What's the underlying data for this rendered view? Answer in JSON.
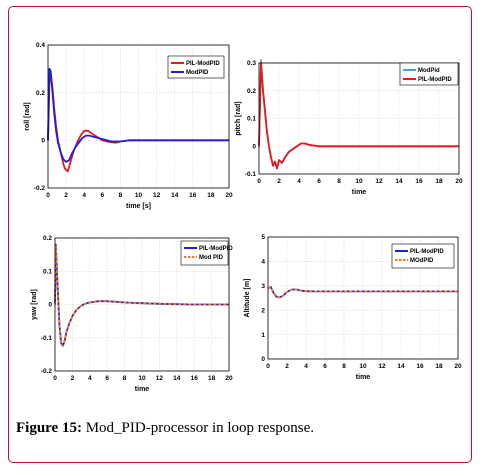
{
  "caption": {
    "label": "Figure 15:",
    "text": "Mod_PID-processor in loop response."
  },
  "chart_data": [
    {
      "type": "line",
      "ylabel": "roll [rad]",
      "xlabel": "time [s]",
      "xlim": [
        0,
        20
      ],
      "ylim": [
        -0.2,
        0.4
      ],
      "xticks": [
        0,
        2,
        4,
        6,
        8,
        10,
        12,
        14,
        16,
        18,
        20
      ],
      "yticks": [
        -0.2,
        0,
        0.2,
        0.4
      ],
      "grid": true,
      "legend": "top-right",
      "series": [
        {
          "name": "PIL-ModPID",
          "color": "#e41a1c",
          "style": "solid",
          "x": [
            0,
            0.15,
            0.3,
            0.5,
            0.7,
            0.9,
            1.1,
            1.4,
            1.7,
            1.9,
            2.2,
            2.5,
            2.8,
            3.2,
            3.6,
            4.0,
            4.4,
            4.8,
            5.2,
            5.6,
            6.0,
            6.5,
            7.0,
            7.5,
            8.0,
            9.0,
            10.0,
            12.0,
            14.0,
            16.0,
            18.0,
            20.0
          ],
          "y": [
            0.0,
            0.24,
            0.28,
            0.22,
            0.13,
            0.06,
            0.0,
            -0.05,
            -0.1,
            -0.12,
            -0.13,
            -0.09,
            -0.05,
            -0.01,
            0.02,
            0.04,
            0.04,
            0.03,
            0.02,
            0.01,
            0.0,
            -0.005,
            -0.008,
            -0.01,
            -0.005,
            0.0,
            0.0,
            0.0,
            0.0,
            0.0,
            0.0,
            0.0
          ]
        },
        {
          "name": "ModPID",
          "color": "#1f1fd6",
          "style": "solid",
          "x": [
            0,
            0.15,
            0.3,
            0.5,
            0.7,
            0.9,
            1.1,
            1.4,
            1.7,
            2.0,
            2.3,
            2.6,
            3.0,
            3.4,
            3.8,
            4.2,
            4.6,
            5.0,
            5.5,
            6.0,
            6.5,
            7.0,
            8.0,
            9.0,
            10.0,
            12.0,
            14.0,
            16.0,
            18.0,
            20.0
          ],
          "y": [
            0.0,
            0.3,
            0.29,
            0.2,
            0.11,
            0.04,
            -0.01,
            -0.05,
            -0.08,
            -0.09,
            -0.085,
            -0.06,
            -0.03,
            -0.01,
            0.01,
            0.02,
            0.02,
            0.015,
            0.01,
            0.005,
            0.0,
            -0.005,
            -0.005,
            0.0,
            0.0,
            0.0,
            0.0,
            0.0,
            0.0,
            0.0
          ]
        }
      ]
    },
    {
      "type": "line",
      "ylabel": "pitch [rad]",
      "xlabel": "time",
      "xlim": [
        0,
        20
      ],
      "ylim": [
        -0.1,
        0.3
      ],
      "xticks": [
        0,
        2,
        4,
        6,
        8,
        10,
        12,
        14,
        16,
        18,
        20
      ],
      "yticks": [
        -0.1,
        0,
        0.1,
        0.2,
        0.3
      ],
      "grid": true,
      "legend": "top-right",
      "series": [
        {
          "name": "ModPid",
          "color": "#4aa3c8",
          "style": "solid",
          "x": [
            0,
            0.2,
            0.4,
            0.6,
            0.8,
            1.0,
            1.2,
            1.4,
            1.6,
            1.8,
            2.0,
            2.3,
            2.6,
            3.0,
            3.4,
            3.8,
            4.2,
            4.6,
            5.0,
            6.0,
            8.0,
            10.0,
            14.0,
            20.0
          ],
          "y": [
            0.0,
            0.31,
            0.2,
            0.12,
            0.05,
            0.0,
            -0.04,
            -0.07,
            -0.06,
            -0.08,
            -0.05,
            -0.06,
            -0.04,
            -0.02,
            -0.01,
            0.0,
            0.01,
            0.01,
            0.005,
            0.0,
            0.0,
            0.0,
            0.0,
            0.0
          ]
        },
        {
          "name": "PIL-ModPID",
          "color": "#e41a1c",
          "style": "solid",
          "x": [
            0,
            0.2,
            0.4,
            0.6,
            0.8,
            1.0,
            1.2,
            1.4,
            1.6,
            1.8,
            2.0,
            2.3,
            2.6,
            3.0,
            3.4,
            3.8,
            4.2,
            4.6,
            5.0,
            6.0,
            8.0,
            10.0,
            14.0,
            20.0
          ],
          "y": [
            0.0,
            0.3,
            0.2,
            0.13,
            0.05,
            0.0,
            -0.04,
            -0.07,
            -0.055,
            -0.08,
            -0.05,
            -0.06,
            -0.04,
            -0.02,
            -0.01,
            0.0,
            0.01,
            0.01,
            0.005,
            0.0,
            0.0,
            0.0,
            0.0,
            0.0
          ]
        }
      ]
    },
    {
      "type": "line",
      "ylabel": "yaw [rad]",
      "xlabel": "time",
      "xlim": [
        0,
        20
      ],
      "ylim": [
        -0.2,
        0.2
      ],
      "xticks": [
        0,
        2,
        4,
        6,
        8,
        10,
        12,
        14,
        16,
        18,
        20
      ],
      "yticks": [
        -0.2,
        -0.1,
        0,
        0.1,
        0.2
      ],
      "grid": true,
      "legend": "top-right",
      "series": [
        {
          "name": "PIL-ModPID",
          "color": "#1f1fd6",
          "style": "solid",
          "x": [
            0,
            0.1,
            0.2,
            0.35,
            0.5,
            0.7,
            0.9,
            1.1,
            1.3,
            1.6,
            2.0,
            2.5,
            3.0,
            3.5,
            4.0,
            5.0,
            6.0,
            7.0,
            8.0,
            10.0,
            12.0,
            14.0,
            16.0,
            18.0,
            20.0
          ],
          "y": [
            0.0,
            0.18,
            0.12,
            0.03,
            -0.06,
            -0.115,
            -0.125,
            -0.11,
            -0.085,
            -0.06,
            -0.035,
            -0.015,
            -0.004,
            0.003,
            0.006,
            0.01,
            0.01,
            0.008,
            0.006,
            0.004,
            0.002,
            0.001,
            0.0,
            0.0,
            0.0
          ]
        },
        {
          "name": "Mod PID",
          "color": "#f07a2a",
          "style": "dashed",
          "x": [
            0,
            0.1,
            0.2,
            0.35,
            0.5,
            0.7,
            0.9,
            1.1,
            1.3,
            1.6,
            2.0,
            2.5,
            3.0,
            3.5,
            4.0,
            5.0,
            6.0,
            7.0,
            8.0,
            10.0,
            12.0,
            14.0,
            16.0,
            18.0,
            20.0
          ],
          "y": [
            0.0,
            0.18,
            0.12,
            0.03,
            -0.06,
            -0.115,
            -0.125,
            -0.11,
            -0.085,
            -0.06,
            -0.035,
            -0.015,
            -0.004,
            0.003,
            0.006,
            0.01,
            0.01,
            0.008,
            0.006,
            0.004,
            0.002,
            0.001,
            0.0,
            0.0,
            0.0
          ]
        }
      ]
    },
    {
      "type": "line",
      "ylabel": "Altitude [m]",
      "xlabel": "time",
      "xlim": [
        0,
        20
      ],
      "ylim": [
        0,
        5
      ],
      "xticks": [
        0,
        2,
        4,
        6,
        8,
        10,
        12,
        14,
        16,
        18,
        20
      ],
      "yticks": [
        0,
        1,
        2,
        3,
        4,
        5
      ],
      "grid": true,
      "legend": "top-right",
      "series": [
        {
          "name": "PIL-ModPID",
          "color": "#1f1fd6",
          "style": "solid",
          "x": [
            0,
            0.3,
            0.6,
            0.9,
            1.2,
            1.6,
            2.0,
            2.5,
            3.0,
            3.5,
            4.0,
            5.0,
            6.0,
            8.0,
            10.0,
            12.0,
            14.0,
            16.0,
            18.0,
            20.0
          ],
          "y": [
            2.9,
            2.95,
            2.7,
            2.55,
            2.52,
            2.6,
            2.75,
            2.85,
            2.85,
            2.8,
            2.78,
            2.77,
            2.77,
            2.77,
            2.77,
            2.77,
            2.77,
            2.77,
            2.77,
            2.77
          ]
        },
        {
          "name": "MOdPID",
          "color": "#f07a2a",
          "style": "dashed",
          "x": [
            0,
            0.3,
            0.6,
            0.9,
            1.2,
            1.6,
            2.0,
            2.5,
            3.0,
            3.5,
            4.0,
            5.0,
            6.0,
            8.0,
            10.0,
            12.0,
            14.0,
            16.0,
            18.0,
            20.0
          ],
          "y": [
            2.9,
            2.95,
            2.7,
            2.55,
            2.52,
            2.6,
            2.75,
            2.85,
            2.85,
            2.8,
            2.78,
            2.77,
            2.77,
            2.77,
            2.77,
            2.77,
            2.77,
            2.77,
            2.77,
            2.77
          ]
        }
      ]
    }
  ]
}
